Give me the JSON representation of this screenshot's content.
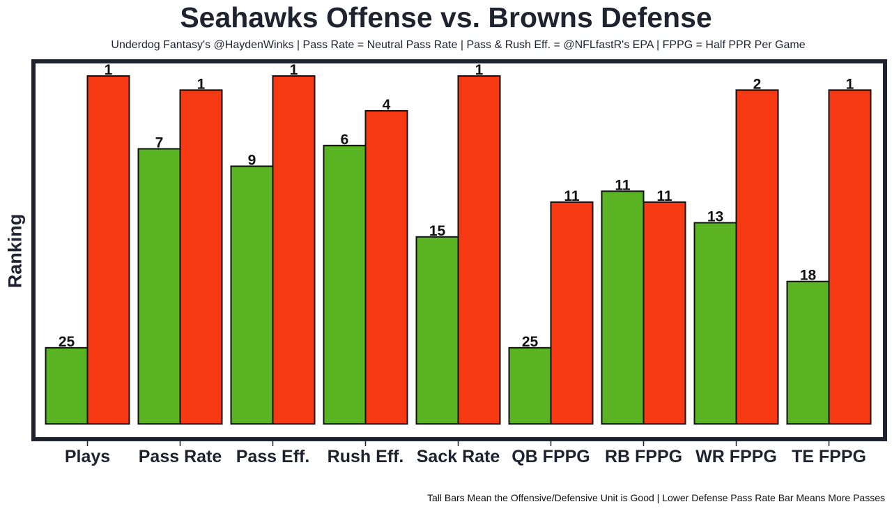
{
  "chart_data": {
    "type": "bar",
    "title": "Seahawks Offense vs. Browns Defense",
    "subtitle": "Underdog Fantasy's @HaydenWinks | Pass Rate = Neutral Pass Rate | Pass & Rush Eff. = @NFLfastR's EPA | FPPG = Half PPR Per Game",
    "caption": "Tall Bars Mean the Offensive/Defensive Unit is Good | Lower Defense Pass Rate Bar Means More Passes",
    "xlabel": "",
    "ylabel": "Ranking",
    "ylim": [
      0,
      32
    ],
    "grid": false,
    "legend": "none",
    "categories": [
      "Plays",
      "Pass Rate",
      "Pass Eff.",
      "Rush Eff.",
      "Sack Rate",
      "QB FPPG",
      "RB FPPG",
      "WR FPPG",
      "TE FPPG"
    ],
    "series": [
      {
        "name": "Seahawks Offense",
        "color": "#59b323",
        "values": [
          7.0,
          25.3,
          23.7,
          25.6,
          17.2,
          7.0,
          21.4,
          18.5,
          13.1
        ],
        "labels": [
          "25",
          "7",
          "9",
          "6",
          "15",
          "25",
          "11",
          "13",
          "18"
        ]
      },
      {
        "name": "Browns Defense",
        "color": "#f73914",
        "values": [
          32.0,
          30.7,
          32.0,
          28.8,
          32.0,
          20.4,
          20.4,
          30.7,
          30.7
        ],
        "labels": [
          "1",
          "1",
          "1",
          "4",
          "1",
          "11",
          "11",
          "2",
          "1"
        ]
      }
    ]
  }
}
